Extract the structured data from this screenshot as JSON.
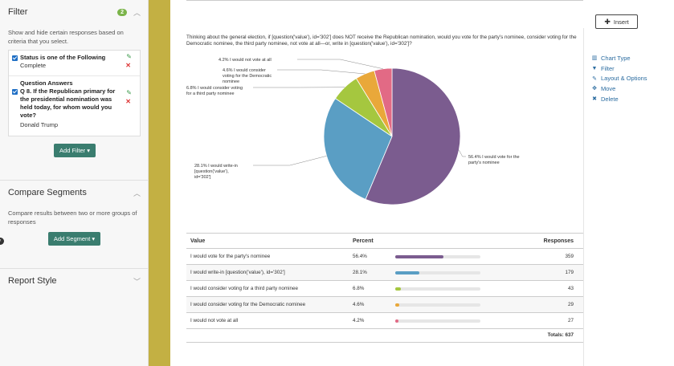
{
  "sidebar": {
    "filter": {
      "title": "Filter",
      "count": "2",
      "description": "Show and hide certain responses based on criteria that you select.",
      "status_title": "Status is one of the Following",
      "status_value": "Complete",
      "qa_header": "Question Answers",
      "qa_question": "Q 8. If the Republican primary for the presidential nomination was held today, for whom would you vote?",
      "qa_value": "Donald Trump",
      "add_filter_label": "Add Filter ▾"
    },
    "compare": {
      "title": "Compare Segments",
      "description": "Compare results between two or more groups of responses",
      "add_segment_label": "Add Segment ▾"
    },
    "report_style": {
      "title": "Report Style"
    }
  },
  "main": {
    "question": "Thinking about the general election, if [question('value'), id='302'] does NOT receive the Republican nomination, would you vote for the party's nominee, consider voting for the Democratic nominee, the third party nominee, not vote at all—or, write in [question('value'), id='302']?",
    "insert_label": "Insert",
    "menu": [
      {
        "icon": "chart-type-icon",
        "glyph": "▥",
        "label": "Chart Type"
      },
      {
        "icon": "filter-icon",
        "glyph": "▼",
        "label": "Filter"
      },
      {
        "icon": "pencil-icon",
        "glyph": "✎",
        "label": "Layout & Options"
      },
      {
        "icon": "move-icon",
        "glyph": "✥",
        "label": "Move"
      },
      {
        "icon": "delete-icon",
        "glyph": "✖",
        "label": "Delete"
      }
    ],
    "table": {
      "headers": {
        "value": "Value",
        "percent": "Percent",
        "responses": "Responses"
      },
      "rows": [
        {
          "value": "I would vote for the party's nominee",
          "percent": "56.4%",
          "pct": 0.564,
          "responses": "359",
          "color": "#7b5c8f"
        },
        {
          "value": "I would write-in [question('value'), id='302']",
          "percent": "28.1%",
          "pct": 0.281,
          "responses": "179",
          "color": "#5a9ec4"
        },
        {
          "value": "I would consider voting for a third party nominee",
          "percent": "6.8%",
          "pct": 0.068,
          "responses": "43",
          "color": "#a5c73f"
        },
        {
          "value": "I would consider voting for the Democratic nominee",
          "percent": "4.6%",
          "pct": 0.046,
          "responses": "29",
          "color": "#e9a83a"
        },
        {
          "value": "I would not vote at all",
          "percent": "4.2%",
          "pct": 0.042,
          "responses": "27",
          "color": "#e26a85"
        }
      ],
      "totals": "Totals: 637"
    }
  },
  "chart_data": {
    "type": "pie",
    "slices": [
      {
        "label": "I would vote for the party's nominee",
        "value": 56.4,
        "display": "56.4% I would vote for the party's nominee",
        "color": "#7b5c8f"
      },
      {
        "label": "I would write-in [question('value'), id='302']",
        "value": 28.1,
        "display": "28.1% I would write-in [question('value'), id='302']",
        "color": "#5a9ec4"
      },
      {
        "label": "I would consider voting for a third party nominee",
        "value": 6.8,
        "display": "6.8% I would consider voting for a third party nominee",
        "color": "#a5c73f"
      },
      {
        "label": "I would consider voting for the Democratic nominee",
        "value": 4.6,
        "display": "4.6% I would consider voting for the Democratic nominee",
        "color": "#e9a83a"
      },
      {
        "label": "I would not vote at all",
        "value": 4.2,
        "display": "4.2% I would not vote at all",
        "color": "#e26a85"
      }
    ]
  }
}
